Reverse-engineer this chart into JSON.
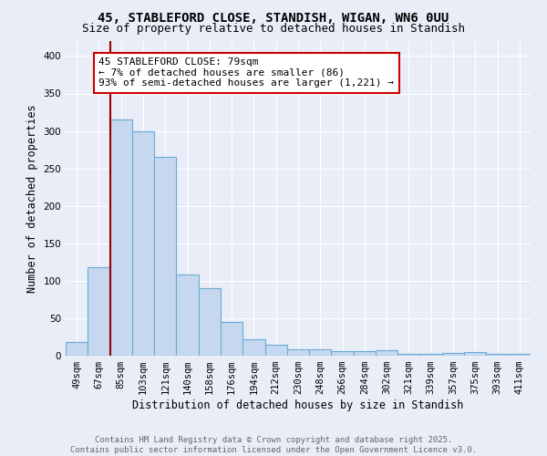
{
  "title_line1": "45, STABLEFORD CLOSE, STANDISH, WIGAN, WN6 0UU",
  "title_line2": "Size of property relative to detached houses in Standish",
  "xlabel": "Distribution of detached houses by size in Standish",
  "ylabel": "Number of detached properties",
  "bin_labels": [
    "49sqm",
    "67sqm",
    "85sqm",
    "103sqm",
    "121sqm",
    "140sqm",
    "158sqm",
    "176sqm",
    "194sqm",
    "212sqm",
    "230sqm",
    "248sqm",
    "266sqm",
    "284sqm",
    "302sqm",
    "321sqm",
    "339sqm",
    "357sqm",
    "375sqm",
    "393sqm",
    "411sqm"
  ],
  "bar_heights": [
    18,
    118,
    315,
    300,
    265,
    108,
    90,
    45,
    22,
    15,
    9,
    8,
    6,
    6,
    7,
    3,
    2,
    4,
    5,
    2,
    3
  ],
  "bar_color": "#c5d8ef",
  "bar_edge_color": "#6aaad4",
  "red_line_index": 2,
  "red_line_color": "#990000",
  "annotation_text": "45 STABLEFORD CLOSE: 79sqm\n← 7% of detached houses are smaller (86)\n93% of semi-detached houses are larger (1,221) →",
  "annotation_box_color": "#ffffff",
  "annotation_box_edge_color": "#cc0000",
  "ylim": [
    0,
    420
  ],
  "yticks": [
    0,
    50,
    100,
    150,
    200,
    250,
    300,
    350,
    400
  ],
  "background_color": "#e8edf8",
  "plot_background_color": "#e8edf8",
  "grid_color": "#ffffff",
  "footer_line1": "Contains HM Land Registry data © Crown copyright and database right 2025.",
  "footer_line2": "Contains public sector information licensed under the Open Government Licence v3.0.",
  "title_fontsize": 10,
  "subtitle_fontsize": 9,
  "axis_label_fontsize": 8.5,
  "tick_fontsize": 7.5,
  "annotation_fontsize": 8,
  "footer_fontsize": 6.5
}
